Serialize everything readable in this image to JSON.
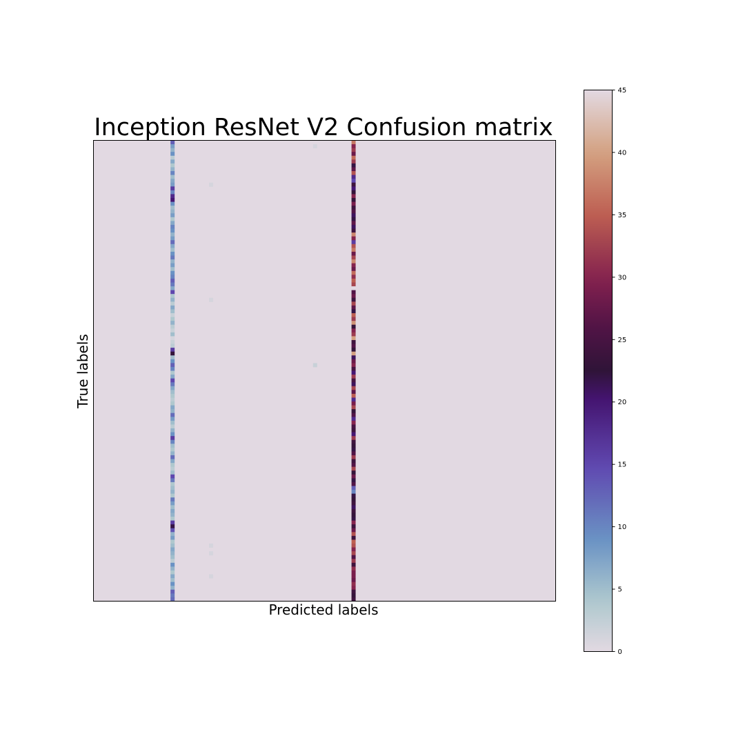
{
  "chart_data": {
    "type": "heatmap",
    "title": "Inception ResNet V2 Confusion matrix",
    "xlabel": "Predicted labels",
    "ylabel": "True labels",
    "n_classes": 120,
    "default_value": 0,
    "colorscale": "twilight",
    "value_range": [
      0,
      45
    ],
    "grid": false,
    "axis_ticks_shown": false,
    "colorbar": {
      "position": "right",
      "ticks": [
        0,
        5,
        10,
        15,
        20,
        25,
        30,
        35,
        40,
        45
      ]
    },
    "columns": [
      {
        "predicted_index": 20,
        "values": [
          13,
          8,
          6,
          9,
          3,
          7,
          4,
          6,
          10,
          5,
          7,
          8,
          16,
          10,
          18,
          20,
          9,
          5,
          6,
          8,
          4,
          7,
          10,
          9,
          6,
          8,
          12,
          7,
          5,
          9,
          11,
          6,
          8,
          5,
          9,
          10,
          13,
          11,
          7,
          15,
          4,
          6,
          3,
          7,
          5,
          2,
          4,
          6,
          3,
          2,
          5,
          1,
          2,
          3,
          16,
          23,
          5,
          9,
          13,
          10,
          4,
          7,
          15,
          11,
          7,
          5,
          4,
          3,
          4,
          7,
          6,
          12,
          8,
          5,
          3,
          6,
          9,
          16,
          10,
          5,
          4,
          6,
          12,
          7,
          4,
          3,
          5,
          15,
          11,
          4,
          5,
          6,
          4,
          11,
          8,
          5,
          7,
          6,
          4,
          16,
          22,
          14,
          6,
          8,
          4,
          5,
          7,
          6,
          5,
          3,
          9,
          6,
          4,
          7,
          5,
          9,
          6,
          13,
          11,
          12
        ]
      },
      {
        "predicted_index": 67,
        "values": [
          37,
          30,
          32,
          28,
          36,
          32,
          22,
          27,
          34,
          18,
          15,
          24,
          20,
          23,
          30,
          23,
          29,
          24,
          26,
          21,
          22,
          27,
          21,
          24,
          38,
          30,
          16,
          34,
          37,
          28,
          33,
          38,
          30,
          28,
          36,
          31,
          35,
          33,
          0,
          26,
          28,
          24,
          33,
          27,
          22,
          35,
          32,
          39,
          23,
          30,
          32,
          40,
          24,
          26,
          23,
          40,
          21,
          28,
          30,
          25,
          20,
          32,
          25,
          21,
          33,
          27,
          35,
          18,
          29,
          33,
          23,
          26,
          18,
          30,
          25,
          24,
          20,
          32,
          24,
          23,
          22,
          26,
          32,
          24,
          26,
          33,
          23,
          28,
          22,
          26,
          13,
          10,
          22,
          23,
          24,
          21,
          24,
          23,
          22,
          30,
          24,
          28,
          34,
          24,
          35,
          34,
          30,
          33,
          26,
          32,
          24,
          31,
          29,
          29,
          28,
          31,
          30,
          24,
          23,
          24
        ]
      }
    ],
    "faint_cells": [
      {
        "row": 1,
        "col": 57,
        "value": 1
      },
      {
        "row": 11,
        "col": 30,
        "value": 1
      },
      {
        "row": 41,
        "col": 30,
        "value": 1
      },
      {
        "row": 58,
        "col": 57,
        "value": 2
      },
      {
        "row": 105,
        "col": 30,
        "value": 1
      },
      {
        "row": 107,
        "col": 30,
        "value": 1
      },
      {
        "row": 113,
        "col": 30,
        "value": 1
      }
    ]
  }
}
